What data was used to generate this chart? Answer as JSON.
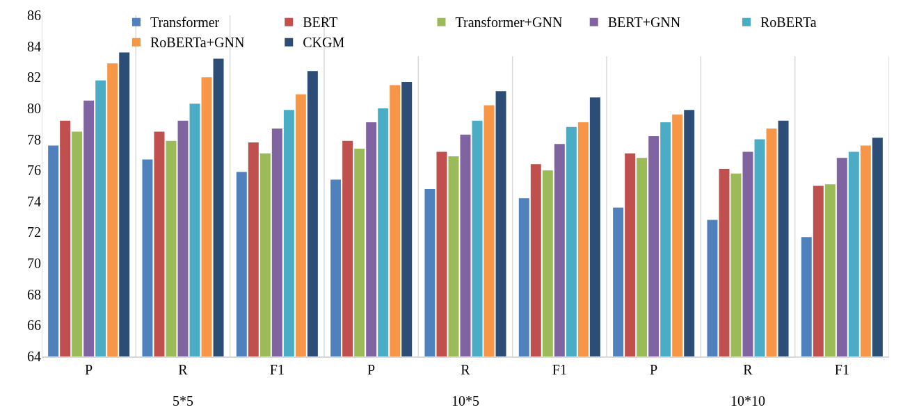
{
  "chart_data": {
    "type": "bar",
    "categories": [
      "P",
      "R",
      "F1",
      "P",
      "R",
      "F1",
      "P",
      "R",
      "F1"
    ],
    "annotations": [
      "5*5",
      "10*5",
      "10*10"
    ],
    "ylim": [
      64,
      86
    ],
    "yticks": [
      64,
      66,
      68,
      70,
      72,
      74,
      76,
      78,
      80,
      82,
      84,
      86
    ],
    "grid": "x",
    "legend": "top right",
    "series": [
      {
        "name": "Transformer",
        "color": "#4f81bd",
        "values": [
          77.6,
          76.7,
          75.9,
          75.4,
          74.8,
          74.2,
          73.6,
          72.8,
          71.7
        ]
      },
      {
        "name": "BERT",
        "color": "#c0504d",
        "values": [
          79.2,
          78.5,
          77.8,
          77.9,
          77.2,
          76.4,
          77.1,
          76.1,
          75.0
        ]
      },
      {
        "name": "Transformer+GNN",
        "color": "#9bbb59",
        "values": [
          78.5,
          77.9,
          77.1,
          77.4,
          76.9,
          76.0,
          76.8,
          75.8,
          75.1
        ]
      },
      {
        "name": "BERT+GNN",
        "color": "#8064a2",
        "values": [
          80.5,
          79.2,
          78.7,
          79.1,
          78.3,
          77.7,
          78.2,
          77.2,
          76.8
        ]
      },
      {
        "name": "RoBERTa",
        "color": "#4bacc6",
        "values": [
          81.8,
          80.3,
          79.9,
          80.0,
          79.2,
          78.8,
          79.1,
          78.0,
          77.2
        ]
      },
      {
        "name": "RoBERTa+GNN",
        "color": "#f79646",
        "values": [
          82.9,
          82.0,
          80.9,
          81.5,
          80.2,
          79.1,
          79.6,
          78.7,
          77.6
        ]
      },
      {
        "name": "CKGM",
        "color": "#2c4d75",
        "values": [
          83.6,
          83.2,
          82.4,
          81.7,
          81.1,
          80.7,
          79.9,
          79.2,
          78.1
        ]
      }
    ]
  }
}
